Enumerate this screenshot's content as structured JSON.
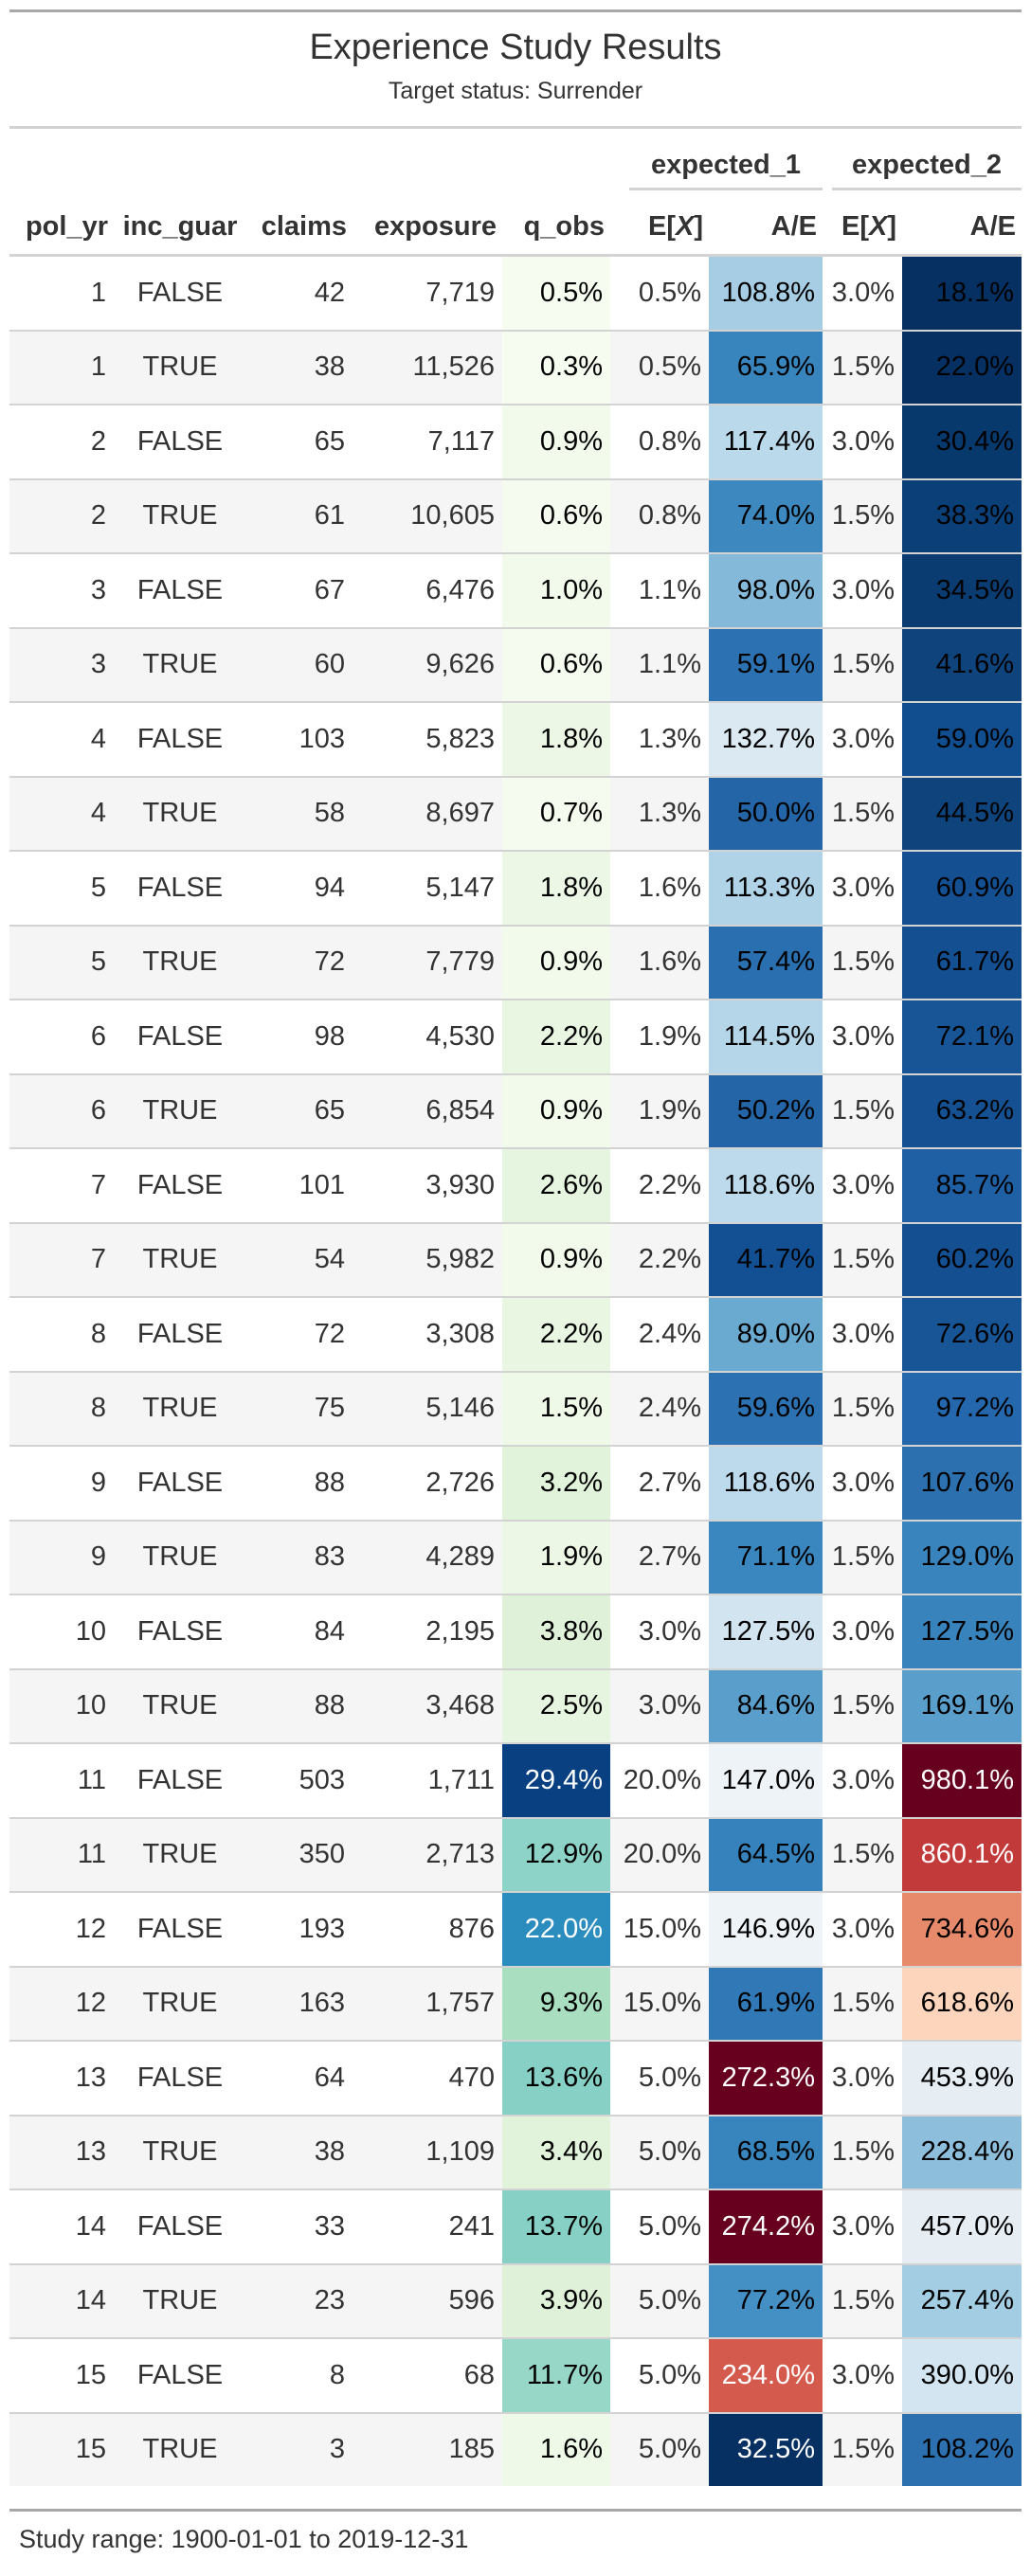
{
  "title": "Experience Study Results",
  "subtitle": "Target status: Surrender",
  "spanners": {
    "expected_1": "expected_1",
    "expected_2": "expected_2"
  },
  "columns": {
    "pol_yr": "pol_yr",
    "inc_guar": "inc_guar",
    "claims": "claims",
    "exposure": "exposure",
    "q_obs": "q_obs",
    "ex_prefix": "E[",
    "ex_var": "X",
    "ex_suffix": "]",
    "ae": "A/E"
  },
  "footer": "Study range: 1900-01-01 to 2019-12-31",
  "rows": [
    {
      "pol_yr": "1",
      "inc_guar": "FALSE",
      "claims": "42",
      "exposure": "7,719",
      "q_obs": "0.5%",
      "q_obs_bg": "#f7fcf0",
      "ex1": "0.5%",
      "ae1": "108.8%",
      "ae1_bg": "#a6cde4",
      "ex2": "3.0%",
      "ae2": "18.1%",
      "ae2_bg": "#053061"
    },
    {
      "pol_yr": "1",
      "inc_guar": "TRUE",
      "claims": "38",
      "exposure": "11,526",
      "q_obs": "0.3%",
      "q_obs_bg": "#f7fcf0",
      "ex1": "0.5%",
      "ae1": "65.9%",
      "ae1_bg": "#3884bd",
      "ex2": "1.5%",
      "ae2": "22.0%",
      "ae2_bg": "#053061"
    },
    {
      "pol_yr": "2",
      "inc_guar": "FALSE",
      "claims": "65",
      "exposure": "7,117",
      "q_obs": "0.9%",
      "q_obs_bg": "#f2faeb",
      "ex1": "0.8%",
      "ae1": "117.4%",
      "ae1_bg": "#bad9ea",
      "ex2": "3.0%",
      "ae2": "30.4%",
      "ae2_bg": "#08396d"
    },
    {
      "pol_yr": "2",
      "inc_guar": "TRUE",
      "claims": "61",
      "exposure": "10,605",
      "q_obs": "0.6%",
      "q_obs_bg": "#f5fbee",
      "ex1": "0.8%",
      "ae1": "74.0%",
      "ae1_bg": "#3c88bf",
      "ex2": "1.5%",
      "ae2": "38.3%",
      "ae2_bg": "#0b3f77"
    },
    {
      "pol_yr": "3",
      "inc_guar": "FALSE",
      "claims": "67",
      "exposure": "6,476",
      "q_obs": "1.0%",
      "q_obs_bg": "#f2faeb",
      "ex1": "1.1%",
      "ae1": "98.0%",
      "ae1_bg": "#84b9d9",
      "ex2": "3.0%",
      "ae2": "34.5%",
      "ae2_bg": "#0a3c72"
    },
    {
      "pol_yr": "3",
      "inc_guar": "TRUE",
      "claims": "60",
      "exposure": "9,626",
      "q_obs": "0.6%",
      "q_obs_bg": "#f5fbee",
      "ex1": "1.1%",
      "ae1": "59.1%",
      "ae1_bg": "#2c72b2",
      "ex2": "1.5%",
      "ae2": "41.6%",
      "ae2_bg": "#0f437b"
    },
    {
      "pol_yr": "4",
      "inc_guar": "FALSE",
      "claims": "103",
      "exposure": "5,823",
      "q_obs": "1.8%",
      "q_obs_bg": "#ecf7e6",
      "ex1": "1.3%",
      "ae1": "132.7%",
      "ae1_bg": "#dbe9f2",
      "ex2": "3.0%",
      "ae2": "59.0%",
      "ae2_bg": "#114e8f"
    },
    {
      "pol_yr": "4",
      "inc_guar": "TRUE",
      "claims": "58",
      "exposure": "8,697",
      "q_obs": "0.7%",
      "q_obs_bg": "#f5fbee",
      "ex1": "1.3%",
      "ae1": "50.0%",
      "ae1_bg": "#2465a7",
      "ex2": "1.5%",
      "ae2": "44.5%",
      "ae2_bg": "#0f437b"
    },
    {
      "pol_yr": "5",
      "inc_guar": "FALSE",
      "claims": "94",
      "exposure": "5,147",
      "q_obs": "1.8%",
      "q_obs_bg": "#ecf7e6",
      "ex1": "1.6%",
      "ae1": "113.3%",
      "ae1_bg": "#b1d3e7",
      "ex2": "3.0%",
      "ae2": "60.9%",
      "ae2_bg": "#134f91"
    },
    {
      "pol_yr": "5",
      "inc_guar": "TRUE",
      "claims": "72",
      "exposure": "7,779",
      "q_obs": "0.9%",
      "q_obs_bg": "#f2faeb",
      "ex1": "1.6%",
      "ae1": "57.4%",
      "ae1_bg": "#2a6fb0",
      "ex2": "1.5%",
      "ae2": "61.7%",
      "ae2_bg": "#134f91"
    },
    {
      "pol_yr": "6",
      "inc_guar": "FALSE",
      "claims": "98",
      "exposure": "4,530",
      "q_obs": "2.2%",
      "q_obs_bg": "#e8f6e2",
      "ex1": "1.9%",
      "ae1": "114.5%",
      "ae1_bg": "#b5d6e8",
      "ex2": "3.0%",
      "ae2": "72.1%",
      "ae2_bg": "#185597"
    },
    {
      "pol_yr": "6",
      "inc_guar": "TRUE",
      "claims": "65",
      "exposure": "6,854",
      "q_obs": "0.9%",
      "q_obs_bg": "#f2faeb",
      "ex1": "1.9%",
      "ae1": "50.2%",
      "ae1_bg": "#2465a7",
      "ex2": "1.5%",
      "ae2": "63.2%",
      "ae2_bg": "#155192"
    },
    {
      "pol_yr": "7",
      "inc_guar": "FALSE",
      "claims": "101",
      "exposure": "3,930",
      "q_obs": "2.6%",
      "q_obs_bg": "#e6f5e0",
      "ex1": "2.2%",
      "ae1": "118.6%",
      "ae1_bg": "#bcdaeb",
      "ex2": "3.0%",
      "ae2": "85.7%",
      "ae2_bg": "#1f5fa4"
    },
    {
      "pol_yr": "7",
      "inc_guar": "TRUE",
      "claims": "54",
      "exposure": "5,982",
      "q_obs": "0.9%",
      "q_obs_bg": "#f2faeb",
      "ex1": "2.2%",
      "ae1": "41.7%",
      "ae1_bg": "#124f93",
      "ex2": "1.5%",
      "ae2": "60.2%",
      "ae2_bg": "#134f91"
    },
    {
      "pol_yr": "8",
      "inc_guar": "FALSE",
      "claims": "72",
      "exposure": "3,308",
      "q_obs": "2.2%",
      "q_obs_bg": "#e8f6e2",
      "ex1": "2.4%",
      "ae1": "89.0%",
      "ae1_bg": "#6aa9d0",
      "ex2": "3.0%",
      "ae2": "72.6%",
      "ae2_bg": "#185597"
    },
    {
      "pol_yr": "8",
      "inc_guar": "TRUE",
      "claims": "75",
      "exposure": "5,146",
      "q_obs": "1.5%",
      "q_obs_bg": "#eff9e8",
      "ex1": "2.4%",
      "ae1": "59.6%",
      "ae1_bg": "#2c72b2",
      "ex2": "1.5%",
      "ae2": "97.2%",
      "ae2_bg": "#2467ac"
    },
    {
      "pol_yr": "9",
      "inc_guar": "FALSE",
      "claims": "88",
      "exposure": "2,726",
      "q_obs": "3.2%",
      "q_obs_bg": "#e1f3db",
      "ex1": "2.7%",
      "ae1": "118.6%",
      "ae1_bg": "#bcdaeb",
      "ex2": "3.0%",
      "ae2": "107.6%",
      "ae2_bg": "#2c70b0"
    },
    {
      "pol_yr": "9",
      "inc_guar": "TRUE",
      "claims": "83",
      "exposure": "4,289",
      "q_obs": "1.9%",
      "q_obs_bg": "#ecf7e6",
      "ex1": "2.7%",
      "ae1": "71.1%",
      "ae1_bg": "#3a86bf",
      "ex2": "1.5%",
      "ae2": "129.0%",
      "ae2_bg": "#3a84bd"
    },
    {
      "pol_yr": "10",
      "inc_guar": "FALSE",
      "claims": "84",
      "exposure": "2,195",
      "q_obs": "3.8%",
      "q_obs_bg": "#dff2d9",
      "ex1": "3.0%",
      "ae1": "127.5%",
      "ae1_bg": "#d1e4f0",
      "ex2": "3.0%",
      "ae2": "127.5%",
      "ae2_bg": "#3883bc"
    },
    {
      "pol_yr": "10",
      "inc_guar": "TRUE",
      "claims": "88",
      "exposure": "3,468",
      "q_obs": "2.5%",
      "q_obs_bg": "#e6f5e0",
      "ex1": "3.0%",
      "ae1": "84.6%",
      "ae1_bg": "#5a9fcb",
      "ex2": "1.5%",
      "ae2": "169.1%",
      "ae2_bg": "#5a9ecb"
    },
    {
      "pol_yr": "11",
      "inc_guar": "FALSE",
      "claims": "503",
      "exposure": "1,711",
      "q_obs": "29.4%",
      "q_obs_bg": "#084081",
      "q_obs_fg": "#ffffff",
      "ex1": "20.0%",
      "ae1": "147.0%",
      "ae1_bg": "#eef3f7",
      "ex2": "3.0%",
      "ae2": "980.1%",
      "ae2_bg": "#67001f",
      "ae2_fg": "#ffffff"
    },
    {
      "pol_yr": "11",
      "inc_guar": "TRUE",
      "claims": "350",
      "exposure": "2,713",
      "q_obs": "12.9%",
      "q_obs_bg": "#8dd3c7",
      "ex1": "20.0%",
      "ae1": "64.5%",
      "ae1_bg": "#3682bc",
      "ex2": "1.5%",
      "ae2": "860.1%",
      "ae2_bg": "#c33a3b",
      "ae2_fg": "#ffffff"
    },
    {
      "pol_yr": "12",
      "inc_guar": "FALSE",
      "claims": "193",
      "exposure": "876",
      "q_obs": "22.0%",
      "q_obs_bg": "#2b8cbe",
      "q_obs_fg": "#ffffff",
      "ex1": "15.0%",
      "ae1": "146.9%",
      "ae1_bg": "#eef3f7",
      "ex2": "3.0%",
      "ae2": "734.6%",
      "ae2_bg": "#e78a6c"
    },
    {
      "pol_yr": "12",
      "inc_guar": "TRUE",
      "claims": "163",
      "exposure": "1,757",
      "q_obs": "9.3%",
      "q_obs_bg": "#a9dfc0",
      "ex1": "15.0%",
      "ae1": "61.9%",
      "ae1_bg": "#3079b6",
      "ex2": "1.5%",
      "ae2": "618.6%",
      "ae2_bg": "#fdd4bc"
    },
    {
      "pol_yr": "13",
      "inc_guar": "FALSE",
      "claims": "64",
      "exposure": "470",
      "q_obs": "13.6%",
      "q_obs_bg": "#86d0c5",
      "ex1": "5.0%",
      "ae1": "272.3%",
      "ae1_bg": "#67001f",
      "ae1_fg": "#ffffff",
      "ex2": "3.0%",
      "ae2": "453.9%",
      "ae2_bg": "#e6eef4"
    },
    {
      "pol_yr": "13",
      "inc_guar": "TRUE",
      "claims": "38",
      "exposure": "1,109",
      "q_obs": "3.4%",
      "q_obs_bg": "#e1f3db",
      "ex1": "5.0%",
      "ae1": "68.5%",
      "ae1_bg": "#3884bd",
      "ex2": "1.5%",
      "ae2": "228.4%",
      "ae2_bg": "#8dbfdc"
    },
    {
      "pol_yr": "14",
      "inc_guar": "FALSE",
      "claims": "33",
      "exposure": "241",
      "q_obs": "13.7%",
      "q_obs_bg": "#86d0c5",
      "ex1": "5.0%",
      "ae1": "274.2%",
      "ae1_bg": "#67001f",
      "ae1_fg": "#ffffff",
      "ex2": "3.0%",
      "ae2": "457.0%",
      "ae2_bg": "#e6eef4"
    },
    {
      "pol_yr": "14",
      "inc_guar": "TRUE",
      "claims": "23",
      "exposure": "596",
      "q_obs": "3.9%",
      "q_obs_bg": "#dff2d9",
      "ex1": "5.0%",
      "ae1": "77.2%",
      "ae1_bg": "#4490c5",
      "ex2": "1.5%",
      "ae2": "257.4%",
      "ae2_bg": "#a3cde3"
    },
    {
      "pol_yr": "15",
      "inc_guar": "FALSE",
      "claims": "8",
      "exposure": "68",
      "q_obs": "11.7%",
      "q_obs_bg": "#97d7c7",
      "ex1": "5.0%",
      "ae1": "234.0%",
      "ae1_bg": "#d35a4c",
      "ae1_fg": "#ffffff",
      "ex2": "3.0%",
      "ae2": "390.0%",
      "ae2_bg": "#d3e5f0"
    },
    {
      "pol_yr": "15",
      "inc_guar": "TRUE",
      "claims": "3",
      "exposure": "185",
      "q_obs": "1.6%",
      "q_obs_bg": "#eff9e8",
      "ex1": "5.0%",
      "ae1": "32.5%",
      "ae1_bg": "#053061",
      "ae1_fg": "#ffffff",
      "ex2": "1.5%",
      "ae2": "108.2%",
      "ae2_bg": "#2c70b0"
    }
  ]
}
